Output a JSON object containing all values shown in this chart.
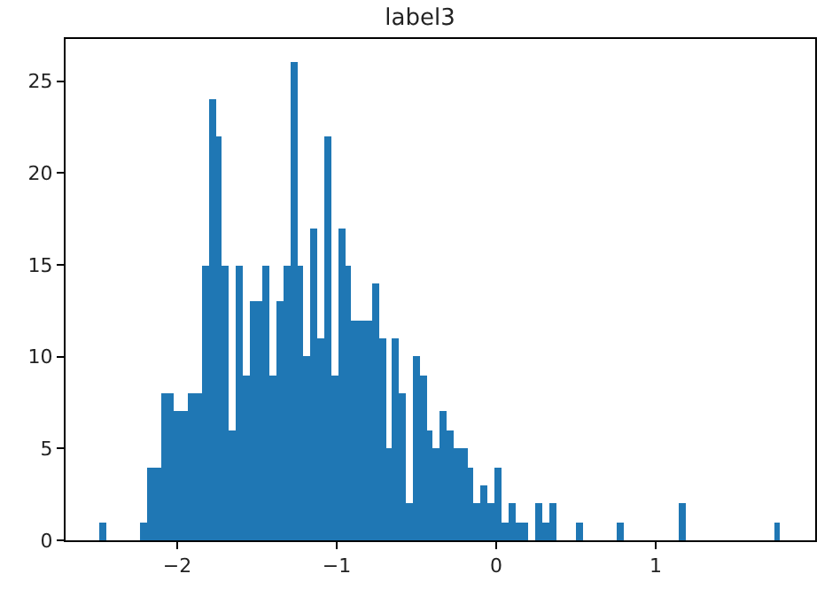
{
  "chart_data": {
    "type": "histogram",
    "title": "label3",
    "color": "#1f77b4",
    "bins": [
      -2.487,
      -2.444,
      -2.402,
      -2.359,
      -2.316,
      -2.274,
      -2.231,
      -2.188,
      -2.145,
      -2.103,
      -2.06,
      -2.017,
      -1.975,
      -1.932,
      -1.889,
      -1.847,
      -1.804,
      -1.761,
      -1.718,
      -1.676,
      -1.633,
      -1.59,
      -1.548,
      -1.505,
      -1.462,
      -1.42,
      -1.377,
      -1.334,
      -1.291,
      -1.249,
      -1.206,
      -1.163,
      -1.121,
      -1.078,
      -1.035,
      -0.993,
      -0.95,
      -0.907,
      -0.864,
      -0.822,
      -0.779,
      -0.736,
      -0.694,
      -0.651,
      -0.608,
      -0.566,
      -0.523,
      -0.48,
      -0.437,
      -0.395,
      -0.352,
      -0.309,
      -0.267,
      -0.224,
      -0.181,
      -0.139,
      -0.096,
      -0.053,
      -0.01,
      0.033,
      0.075,
      0.118,
      0.161,
      0.203,
      0.246,
      0.289,
      0.332,
      0.374,
      0.417,
      0.46,
      0.502,
      0.545,
      0.588,
      0.63,
      0.673,
      0.716,
      0.759,
      0.801,
      0.844,
      0.887,
      0.929,
      0.972,
      1.015,
      1.057,
      1.1,
      1.143,
      1.186,
      1.228,
      1.271,
      1.314,
      1.356,
      1.399,
      1.442,
      1.484,
      1.527,
      1.57,
      1.613,
      1.655,
      1.698,
      1.741,
      1.783
    ],
    "values": [
      1,
      0,
      0,
      0,
      0,
      0,
      1,
      4,
      4,
      8,
      8,
      7,
      7,
      8,
      8,
      15,
      24,
      22,
      15,
      6,
      15,
      9,
      13,
      13,
      15,
      9,
      13,
      15,
      26,
      15,
      10,
      17,
      11,
      22,
      9,
      17,
      15,
      12,
      12,
      12,
      14,
      11,
      5,
      11,
      8,
      2,
      10,
      9,
      6,
      5,
      7,
      6,
      5,
      5,
      4,
      2,
      3,
      2,
      4,
      1,
      2,
      1,
      1,
      0,
      2,
      1,
      2,
      0,
      0,
      0,
      1,
      0,
      0,
      0,
      0,
      0,
      1,
      0,
      0,
      0,
      0,
      0,
      0,
      0,
      0,
      2,
      0,
      0,
      0,
      0,
      0,
      0,
      0,
      0,
      0,
      0,
      0,
      0,
      0,
      1
    ],
    "xlim": [
      -2.7,
      2.0
    ],
    "ylim": [
      0,
      27.3
    ],
    "xticks": [
      {
        "value": -2,
        "label": "−2"
      },
      {
        "value": -1,
        "label": "−1"
      },
      0,
      1
    ],
    "yticks": [
      0,
      5,
      10,
      15,
      20,
      25
    ]
  }
}
